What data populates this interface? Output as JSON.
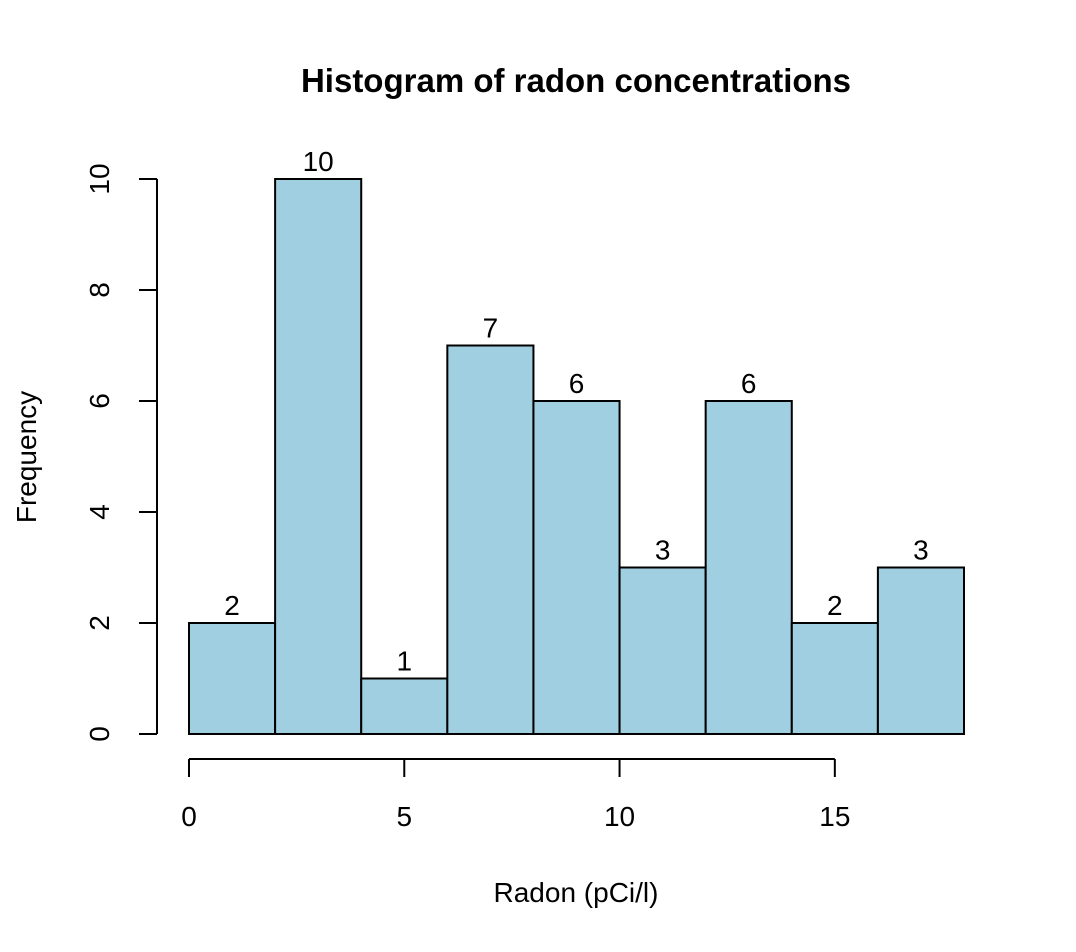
{
  "chart_data": {
    "type": "bar",
    "title": "Histogram of radon concentrations",
    "xlabel": "Radon (pCi/l)",
    "ylabel": "Frequency",
    "bins": [
      {
        "start": 0,
        "end": 2,
        "count": 2
      },
      {
        "start": 2,
        "end": 4,
        "count": 10
      },
      {
        "start": 4,
        "end": 6,
        "count": 1
      },
      {
        "start": 6,
        "end": 8,
        "count": 7
      },
      {
        "start": 8,
        "end": 10,
        "count": 6
      },
      {
        "start": 10,
        "end": 12,
        "count": 3
      },
      {
        "start": 12,
        "end": 14,
        "count": 6
      },
      {
        "start": 14,
        "end": 16,
        "count": 2
      },
      {
        "start": 16,
        "end": 18,
        "count": 3
      }
    ],
    "x_ticks": [
      0,
      5,
      10,
      15
    ],
    "y_ticks": [
      0,
      2,
      4,
      6,
      8,
      10
    ],
    "xlim": [
      0,
      18
    ],
    "ylim": [
      0,
      10
    ],
    "bar_fill": "#9fcfe0",
    "bar_stroke": "#000000",
    "grid": false,
    "legend": "none"
  }
}
